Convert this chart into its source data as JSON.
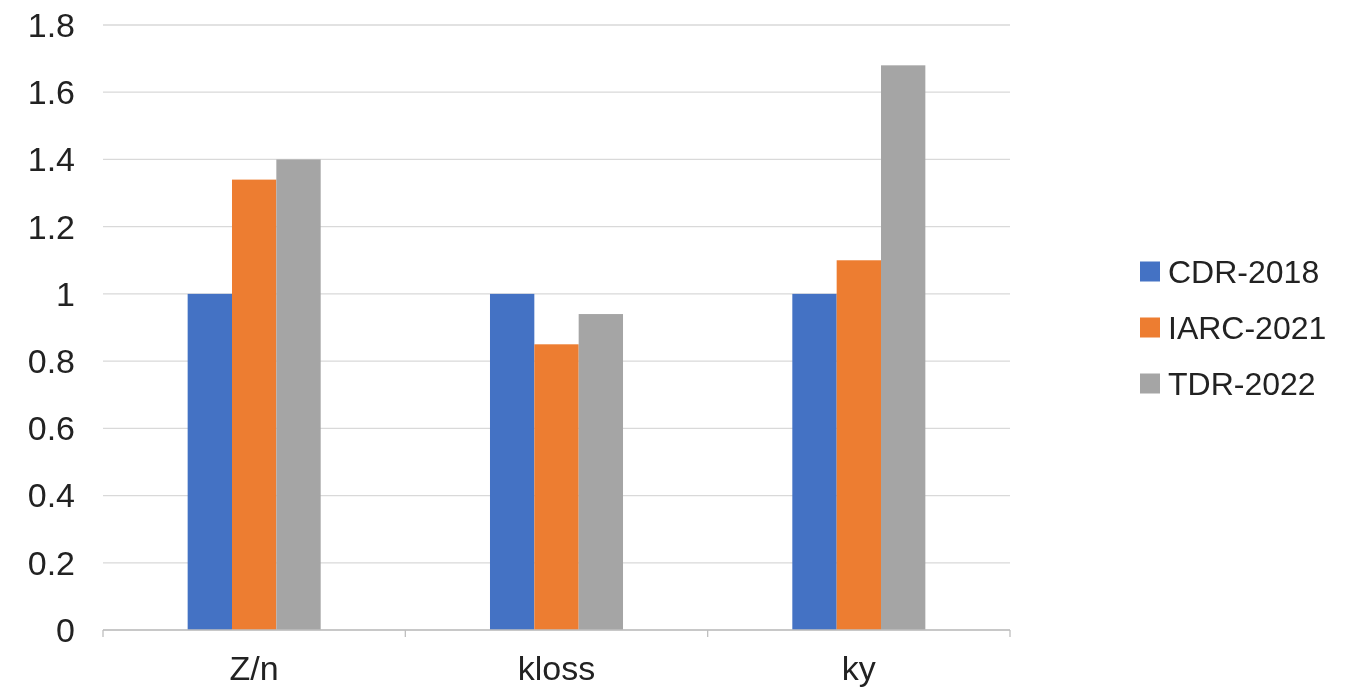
{
  "chart_data": {
    "type": "bar",
    "categories": [
      "Z/n",
      "kloss",
      "ky"
    ],
    "series": [
      {
        "name": "CDR-2018",
        "color": "#4472c4",
        "values": [
          1,
          1,
          1
        ]
      },
      {
        "name": "IARC-2021",
        "color": "#ed7d31",
        "values": [
          1.34,
          0.85,
          1.1
        ]
      },
      {
        "name": "TDR-2022",
        "color": "#a5a5a5",
        "values": [
          1.4,
          0.94,
          1.68
        ]
      }
    ],
    "ylim": [
      0,
      1.8
    ],
    "yticks": [
      0,
      {
        "value": 0.2,
        "label": "0.2"
      },
      {
        "value": 0.4,
        "label": "0.4"
      },
      {
        "value": 0.6,
        "label": "0.6"
      },
      {
        "value": 0.8,
        "label": "0.8"
      },
      1,
      {
        "value": 1.2,
        "label": "1.2"
      },
      {
        "value": 1.4,
        "label": "1.4"
      },
      {
        "value": 1.6,
        "label": "1.6"
      },
      {
        "value": 1.8,
        "label": "1.8"
      }
    ],
    "grid": "y",
    "legend": "right"
  }
}
